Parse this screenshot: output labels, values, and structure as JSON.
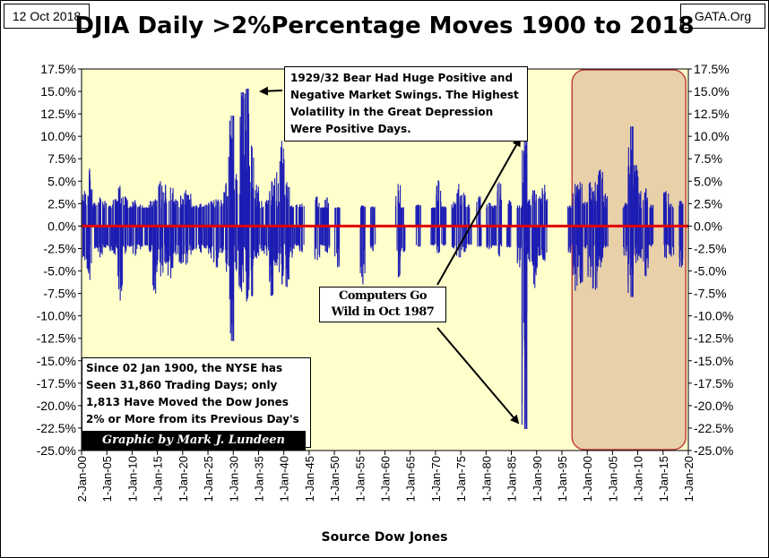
{
  "header": {
    "date": "12 Oct 2018",
    "site": "GATA.Org",
    "title": "DJIA Daily >2%Percentage Moves 1900 to 2018"
  },
  "footer": {
    "source": "Source Dow Jones"
  },
  "annotations": {
    "bear_market_note": "1929/32 Bear Had Huge Positive and Negative Market Swings. The Highest Volatility in the Great Depression Were Positive Days.",
    "computers_note": "Computers Go Wild in Oct 1987",
    "trading_days_note": "Since 02 Jan 1900, the NYSE has Seen 31,860 Trading Days; only 1,813 Have Moved the Dow Jones 2% or More from its Previous Day's Closing Price.",
    "credit": "Graphic by Mark J. Lundeen"
  },
  "colors": {
    "plot_bg": "#ffffcc",
    "bars": "#1c1cb4",
    "zero_line": "#e00000",
    "highlight_fill": "#e8d0a8",
    "highlight_border": "#c04040"
  },
  "chart_data": {
    "type": "bar",
    "title": "DJIA Daily >2%Percentage Moves 1900 to 2018",
    "xlabel": "Source Dow Jones",
    "ylabel": "",
    "ylim": [
      -25.0,
      17.5
    ],
    "y_ticks": [
      "17.5%",
      "15.0%",
      "12.5%",
      "10.0%",
      "7.5%",
      "5.0%",
      "2.5%",
      "0.0%",
      "-2.5%",
      "-5.0%",
      "-7.5%",
      "-10.0%",
      "-12.5%",
      "-15.0%",
      "-17.5%",
      "-20.0%",
      "-22.5%",
      "-25.0%"
    ],
    "x_ticks": [
      "2-Jan-00",
      "1-Jan-05",
      "1-Jan-10",
      "1-Jan-15",
      "1-Jan-20",
      "1-Jan-25",
      "1-Jan-30",
      "1-Jan-35",
      "1-Jan-40",
      "1-Jan-45",
      "1-Jan-50",
      "1-Jan-55",
      "1-Jan-60",
      "1-Jan-65",
      "1-Jan-70",
      "1-Jan-75",
      "1-Jan-80",
      "1-Jan-85",
      "1-Jan-90",
      "1-Jan-95",
      "1-Jan-00",
      "1-Jan-05",
      "1-Jan-10",
      "1-Jan-15",
      "1-Jan-20"
    ],
    "x_range_years": [
      1900,
      2020
    ],
    "highlight_years": [
      1997,
      2019.5
    ],
    "notable_moves": [
      {
        "date": "1929-10-30",
        "pct": 12.3
      },
      {
        "date": "1931-10-06",
        "pct": 14.9
      },
      {
        "date": "1932-09-21",
        "pct": 15.3
      },
      {
        "date": "1929-10-28",
        "pct": -12.8
      },
      {
        "date": "1987-10-21",
        "pct": 10.1
      },
      {
        "date": "1987-10-19",
        "pct": -22.6
      },
      {
        "date": "2008-10-13",
        "pct": 11.1
      },
      {
        "date": "2008-10-15",
        "pct": -7.9
      },
      {
        "date": "1933-07-21",
        "pct": -7.8
      }
    ],
    "envelope": [
      {
        "year": 1900,
        "up": 3.9,
        "down": -3.8
      },
      {
        "year": 1901,
        "up": 6.4,
        "down": -6.0
      },
      {
        "year": 1902,
        "up": 2.6,
        "down": -2.5
      },
      {
        "year": 1903,
        "up": 3.2,
        "down": -3.5
      },
      {
        "year": 1904,
        "up": 2.8,
        "down": -2.4
      },
      {
        "year": 1905,
        "up": 2.3,
        "down": -2.8
      },
      {
        "year": 1906,
        "up": 3.0,
        "down": -3.2
      },
      {
        "year": 1907,
        "up": 4.5,
        "down": -8.3
      },
      {
        "year": 1908,
        "up": 3.3,
        "down": -3.1
      },
      {
        "year": 1909,
        "up": 2.2,
        "down": -2.3
      },
      {
        "year": 1910,
        "up": 2.9,
        "down": -3.3
      },
      {
        "year": 1911,
        "up": 2.4,
        "down": -2.6
      },
      {
        "year": 1912,
        "up": 2.1,
        "down": -2.2
      },
      {
        "year": 1913,
        "up": 2.8,
        "down": -2.9
      },
      {
        "year": 1914,
        "up": 3.0,
        "down": -7.5
      },
      {
        "year": 1915,
        "up": 5.0,
        "down": -5.6
      },
      {
        "year": 1916,
        "up": 4.6,
        "down": -4.2
      },
      {
        "year": 1917,
        "up": 4.3,
        "down": -5.8
      },
      {
        "year": 1918,
        "up": 3.0,
        "down": -3.2
      },
      {
        "year": 1919,
        "up": 3.4,
        "down": -4.2
      },
      {
        "year": 1920,
        "up": 4.0,
        "down": -4.3
      },
      {
        "year": 1921,
        "up": 3.6,
        "down": -3.2
      },
      {
        "year": 1922,
        "up": 2.3,
        "down": -2.6
      },
      {
        "year": 1923,
        "up": 2.5,
        "down": -3.0
      },
      {
        "year": 1924,
        "up": 2.4,
        "down": -2.5
      },
      {
        "year": 1925,
        "up": 2.8,
        "down": -3.6
      },
      {
        "year": 1926,
        "up": 3.0,
        "down": -4.6
      },
      {
        "year": 1927,
        "up": 2.9,
        "down": -3.0
      },
      {
        "year": 1928,
        "up": 4.8,
        "down": -5.1
      },
      {
        "year": 1929,
        "up": 12.3,
        "down": -12.8
      },
      {
        "year": 1930,
        "up": 5.8,
        "down": -5.0
      },
      {
        "year": 1931,
        "up": 14.9,
        "down": -7.3
      },
      {
        "year": 1932,
        "up": 15.3,
        "down": -8.4
      },
      {
        "year": 1933,
        "up": 9.0,
        "down": -7.8
      },
      {
        "year": 1934,
        "up": 4.6,
        "down": -3.6
      },
      {
        "year": 1935,
        "up": 2.8,
        "down": -2.8
      },
      {
        "year": 1936,
        "up": 2.9,
        "down": -3.3
      },
      {
        "year": 1937,
        "up": 5.0,
        "down": -7.8
      },
      {
        "year": 1938,
        "up": 6.0,
        "down": -4.4
      },
      {
        "year": 1939,
        "up": 9.5,
        "down": -6.5
      },
      {
        "year": 1940,
        "up": 4.9,
        "down": -6.8
      },
      {
        "year": 1941,
        "up": 2.3,
        "down": -3.5
      },
      {
        "year": 1942,
        "up": 2.4,
        "down": -2.2
      },
      {
        "year": 1943,
        "up": 2.5,
        "down": -2.9
      },
      {
        "year": 1946,
        "up": 3.3,
        "down": -3.8
      },
      {
        "year": 1947,
        "up": 2.1,
        "down": -2.2
      },
      {
        "year": 1948,
        "up": 3.2,
        "down": -3.0
      },
      {
        "year": 1950,
        "up": 2.1,
        "down": -4.6
      },
      {
        "year": 1955,
        "up": 2.3,
        "down": -6.5
      },
      {
        "year": 1957,
        "up": 2.2,
        "down": -2.8
      },
      {
        "year": 1962,
        "up": 4.7,
        "down": -5.7
      },
      {
        "year": 1963,
        "up": 2.1,
        "down": -2.9
      },
      {
        "year": 1966,
        "up": 2.4,
        "down": -2.3
      },
      {
        "year": 1969,
        "up": 2.1,
        "down": -2.2
      },
      {
        "year": 1970,
        "up": 5.1,
        "down": -3.0
      },
      {
        "year": 1971,
        "up": 2.2,
        "down": -2.2
      },
      {
        "year": 1973,
        "up": 2.7,
        "down": -2.5
      },
      {
        "year": 1974,
        "up": 4.7,
        "down": -3.5
      },
      {
        "year": 1975,
        "up": 3.7,
        "down": -2.9
      },
      {
        "year": 1976,
        "up": 2.4,
        "down": -2.1
      },
      {
        "year": 1978,
        "up": 3.3,
        "down": -2.3
      },
      {
        "year": 1980,
        "up": 2.6,
        "down": -2.6
      },
      {
        "year": 1981,
        "up": 2.3,
        "down": -2.2
      },
      {
        "year": 1982,
        "up": 4.9,
        "down": -3.4
      },
      {
        "year": 1984,
        "up": 2.9,
        "down": -2.4
      },
      {
        "year": 1986,
        "up": 2.3,
        "down": -4.6
      },
      {
        "year": 1987,
        "up": 10.1,
        "down": -22.6
      },
      {
        "year": 1988,
        "up": 3.0,
        "down": -4.0
      },
      {
        "year": 1989,
        "up": 4.0,
        "down": -6.9
      },
      {
        "year": 1990,
        "up": 3.3,
        "down": -3.3
      },
      {
        "year": 1991,
        "up": 4.6,
        "down": -3.9
      },
      {
        "year": 1996,
        "up": 2.3,
        "down": -3.0
      },
      {
        "year": 1997,
        "up": 4.7,
        "down": -7.2
      },
      {
        "year": 1998,
        "up": 4.9,
        "down": -6.4
      },
      {
        "year": 1999,
        "up": 2.7,
        "down": -2.5
      },
      {
        "year": 2000,
        "up": 4.9,
        "down": -5.7
      },
      {
        "year": 2001,
        "up": 4.9,
        "down": -7.1
      },
      {
        "year": 2002,
        "up": 6.3,
        "down": -4.6
      },
      {
        "year": 2003,
        "up": 3.6,
        "down": -2.4
      },
      {
        "year": 2007,
        "up": 2.6,
        "down": -3.3
      },
      {
        "year": 2008,
        "up": 11.1,
        "down": -7.9
      },
      {
        "year": 2009,
        "up": 6.8,
        "down": -4.1
      },
      {
        "year": 2010,
        "up": 3.9,
        "down": -3.6
      },
      {
        "year": 2011,
        "up": 4.2,
        "down": -5.6
      },
      {
        "year": 2012,
        "up": 2.4,
        "down": -2.3
      },
      {
        "year": 2015,
        "up": 3.9,
        "down": -3.6
      },
      {
        "year": 2016,
        "up": 2.5,
        "down": -3.4
      },
      {
        "year": 2018,
        "up": 2.8,
        "down": -4.6
      }
    ]
  }
}
